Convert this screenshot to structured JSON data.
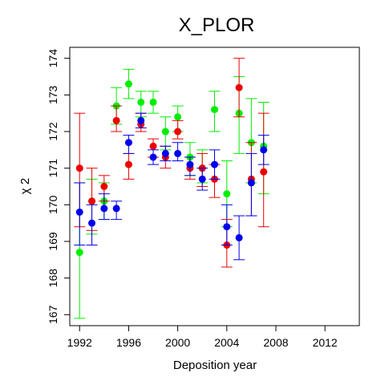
{
  "chart_data": {
    "type": "scatter",
    "title": "X_PLOR",
    "xlabel": "Deposition year",
    "ylabel": "χ 2",
    "xlim": [
      1991.2,
      2014.8
    ],
    "ylim": [
      166.7,
      174.3
    ],
    "xticks": [
      1992,
      1996,
      2000,
      2004,
      2008,
      2012
    ],
    "xtick_labels": [
      "1992",
      "1996",
      "2000",
      "2004",
      "2008",
      "2012"
    ],
    "yticks": [
      167,
      168,
      169,
      170,
      171,
      172,
      173,
      174
    ],
    "ytick_labels": [
      "167",
      "168",
      "169",
      "170",
      "171",
      "172",
      "173",
      "174"
    ],
    "grid": false,
    "legend": "none",
    "series": [
      {
        "color": "#00ee00",
        "points": [
          {
            "x": 1992,
            "y": 168.7,
            "lo": 166.9,
            "hi": 170.6
          },
          {
            "x": 1993,
            "y": 170.1,
            "lo": 169.2,
            "hi": 170.7
          },
          {
            "x": 1994,
            "y": 170.1,
            "lo": 169.6,
            "hi": 170.6
          },
          {
            "x": 1995,
            "y": 172.7,
            "lo": 172.2,
            "hi": 173.2
          },
          {
            "x": 1996,
            "y": 173.3,
            "lo": 172.9,
            "hi": 173.7
          },
          {
            "x": 1997,
            "y": 172.8,
            "lo": 172.4,
            "hi": 173.1
          },
          {
            "x": 1998,
            "y": 172.8,
            "lo": 172.5,
            "hi": 173.1
          },
          {
            "x": 1999,
            "y": 172.0,
            "lo": 171.5,
            "hi": 172.4
          },
          {
            "x": 2000,
            "y": 172.4,
            "lo": 172.0,
            "hi": 172.7
          },
          {
            "x": 2001,
            "y": 171.3,
            "lo": 170.8,
            "hi": 171.7
          },
          {
            "x": 2002,
            "y": 171.0,
            "lo": 170.6,
            "hi": 171.5
          },
          {
            "x": 2003,
            "y": 172.6,
            "lo": 172.0,
            "hi": 173.1
          },
          {
            "x": 2004,
            "y": 170.3,
            "lo": 169.4,
            "hi": 171.2
          },
          {
            "x": 2005,
            "y": 172.5,
            "lo": 171.4,
            "hi": 173.5
          },
          {
            "x": 2006,
            "y": 171.7,
            "lo": 170.6,
            "hi": 172.9
          },
          {
            "x": 2007,
            "y": 171.6,
            "lo": 170.3,
            "hi": 172.8
          }
        ]
      },
      {
        "color": "#ee0000",
        "points": [
          {
            "x": 1992,
            "y": 171.0,
            "lo": 169.4,
            "hi": 172.5
          },
          {
            "x": 1993,
            "y": 170.1,
            "lo": 169.3,
            "hi": 171.0
          },
          {
            "x": 1994,
            "y": 170.5,
            "lo": 170.1,
            "hi": 170.8
          },
          {
            "x": 1995,
            "y": 172.3,
            "lo": 172.0,
            "hi": 172.7
          },
          {
            "x": 1996,
            "y": 171.1,
            "lo": 170.7,
            "hi": 171.4
          },
          {
            "x": 1997,
            "y": 172.2,
            "lo": 172.0,
            "hi": 172.5
          },
          {
            "x": 1998,
            "y": 171.6,
            "lo": 171.3,
            "hi": 171.8
          },
          {
            "x": 1999,
            "y": 171.3,
            "lo": 171.0,
            "hi": 171.6
          },
          {
            "x": 2000,
            "y": 172.0,
            "lo": 171.8,
            "hi": 172.3
          },
          {
            "x": 2001,
            "y": 171.0,
            "lo": 170.7,
            "hi": 171.3
          },
          {
            "x": 2002,
            "y": 171.0,
            "lo": 170.5,
            "hi": 171.4
          },
          {
            "x": 2003,
            "y": 170.7,
            "lo": 170.2,
            "hi": 171.1
          },
          {
            "x": 2004,
            "y": 168.9,
            "lo": 168.3,
            "hi": 169.6
          },
          {
            "x": 2005,
            "y": 173.2,
            "lo": 172.4,
            "hi": 174.0
          },
          {
            "x": 2006,
            "y": 170.7,
            "lo": 169.7,
            "hi": 171.7
          },
          {
            "x": 2007,
            "y": 170.9,
            "lo": 169.4,
            "hi": 172.5
          }
        ]
      },
      {
        "color": "#0000ee",
        "points": [
          {
            "x": 1992,
            "y": 169.8,
            "lo": 168.9,
            "hi": 170.6
          },
          {
            "x": 1993,
            "y": 169.5,
            "lo": 168.9,
            "hi": 170.0
          },
          {
            "x": 1994,
            "y": 169.9,
            "lo": 169.6,
            "hi": 170.3
          },
          {
            "x": 1995,
            "y": 169.9,
            "lo": 169.6,
            "hi": 170.1
          },
          {
            "x": 1996,
            "y": 171.7,
            "lo": 171.4,
            "hi": 171.9
          },
          {
            "x": 1997,
            "y": 172.3,
            "lo": 172.1,
            "hi": 172.5
          },
          {
            "x": 1998,
            "y": 171.3,
            "lo": 171.1,
            "hi": 171.5
          },
          {
            "x": 1999,
            "y": 171.4,
            "lo": 171.2,
            "hi": 171.6
          },
          {
            "x": 2000,
            "y": 171.4,
            "lo": 171.2,
            "hi": 171.7
          },
          {
            "x": 2001,
            "y": 171.1,
            "lo": 170.8,
            "hi": 171.3
          },
          {
            "x": 2002,
            "y": 170.7,
            "lo": 170.4,
            "hi": 171.0
          },
          {
            "x": 2003,
            "y": 171.1,
            "lo": 170.7,
            "hi": 171.5
          },
          {
            "x": 2004,
            "y": 169.4,
            "lo": 168.9,
            "hi": 170.0
          },
          {
            "x": 2005,
            "y": 169.1,
            "lo": 168.5,
            "hi": 169.7
          },
          {
            "x": 2006,
            "y": 170.6,
            "lo": 169.7,
            "hi": 171.4
          },
          {
            "x": 2007,
            "y": 171.5,
            "lo": 171.1,
            "hi": 171.9
          }
        ]
      }
    ]
  }
}
